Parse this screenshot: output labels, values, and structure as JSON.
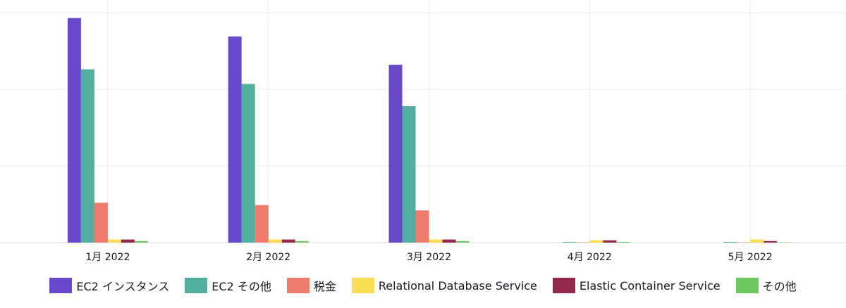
{
  "chart_data": {
    "type": "bar",
    "categories": [
      "1月 2022",
      "2月 2022",
      "3月 2022",
      "4月 2022",
      "5月 2022"
    ],
    "series": [
      {
        "name": "EC2 インスタンス",
        "color": "#6849cb",
        "values": [
          2.93,
          2.69,
          2.32,
          0,
          0
        ]
      },
      {
        "name": "EC2 その他",
        "color": "#52ae9f",
        "values": [
          2.26,
          2.07,
          1.78,
          0.01,
          0.01
        ]
      },
      {
        "name": "税金",
        "color": "#ef7b6c",
        "values": [
          0.52,
          0.49,
          0.42,
          0.005,
          0.005
        ]
      },
      {
        "name": "Relational Database Service",
        "color": "#f8de54",
        "values": [
          0.04,
          0.04,
          0.04,
          0.03,
          0.04
        ]
      },
      {
        "name": "Elastic Container Service",
        "color": "#93284f",
        "values": [
          0.04,
          0.04,
          0.04,
          0.03,
          0.02
        ]
      },
      {
        "name": "その他",
        "color": "#6ccb5f",
        "values": [
          0.02,
          0.02,
          0.02,
          0.01,
          0.005
        ]
      }
    ],
    "ylim": [
      0,
      3
    ],
    "grid_lines": [
      0,
      1,
      2,
      3
    ],
    "grid": true
  }
}
